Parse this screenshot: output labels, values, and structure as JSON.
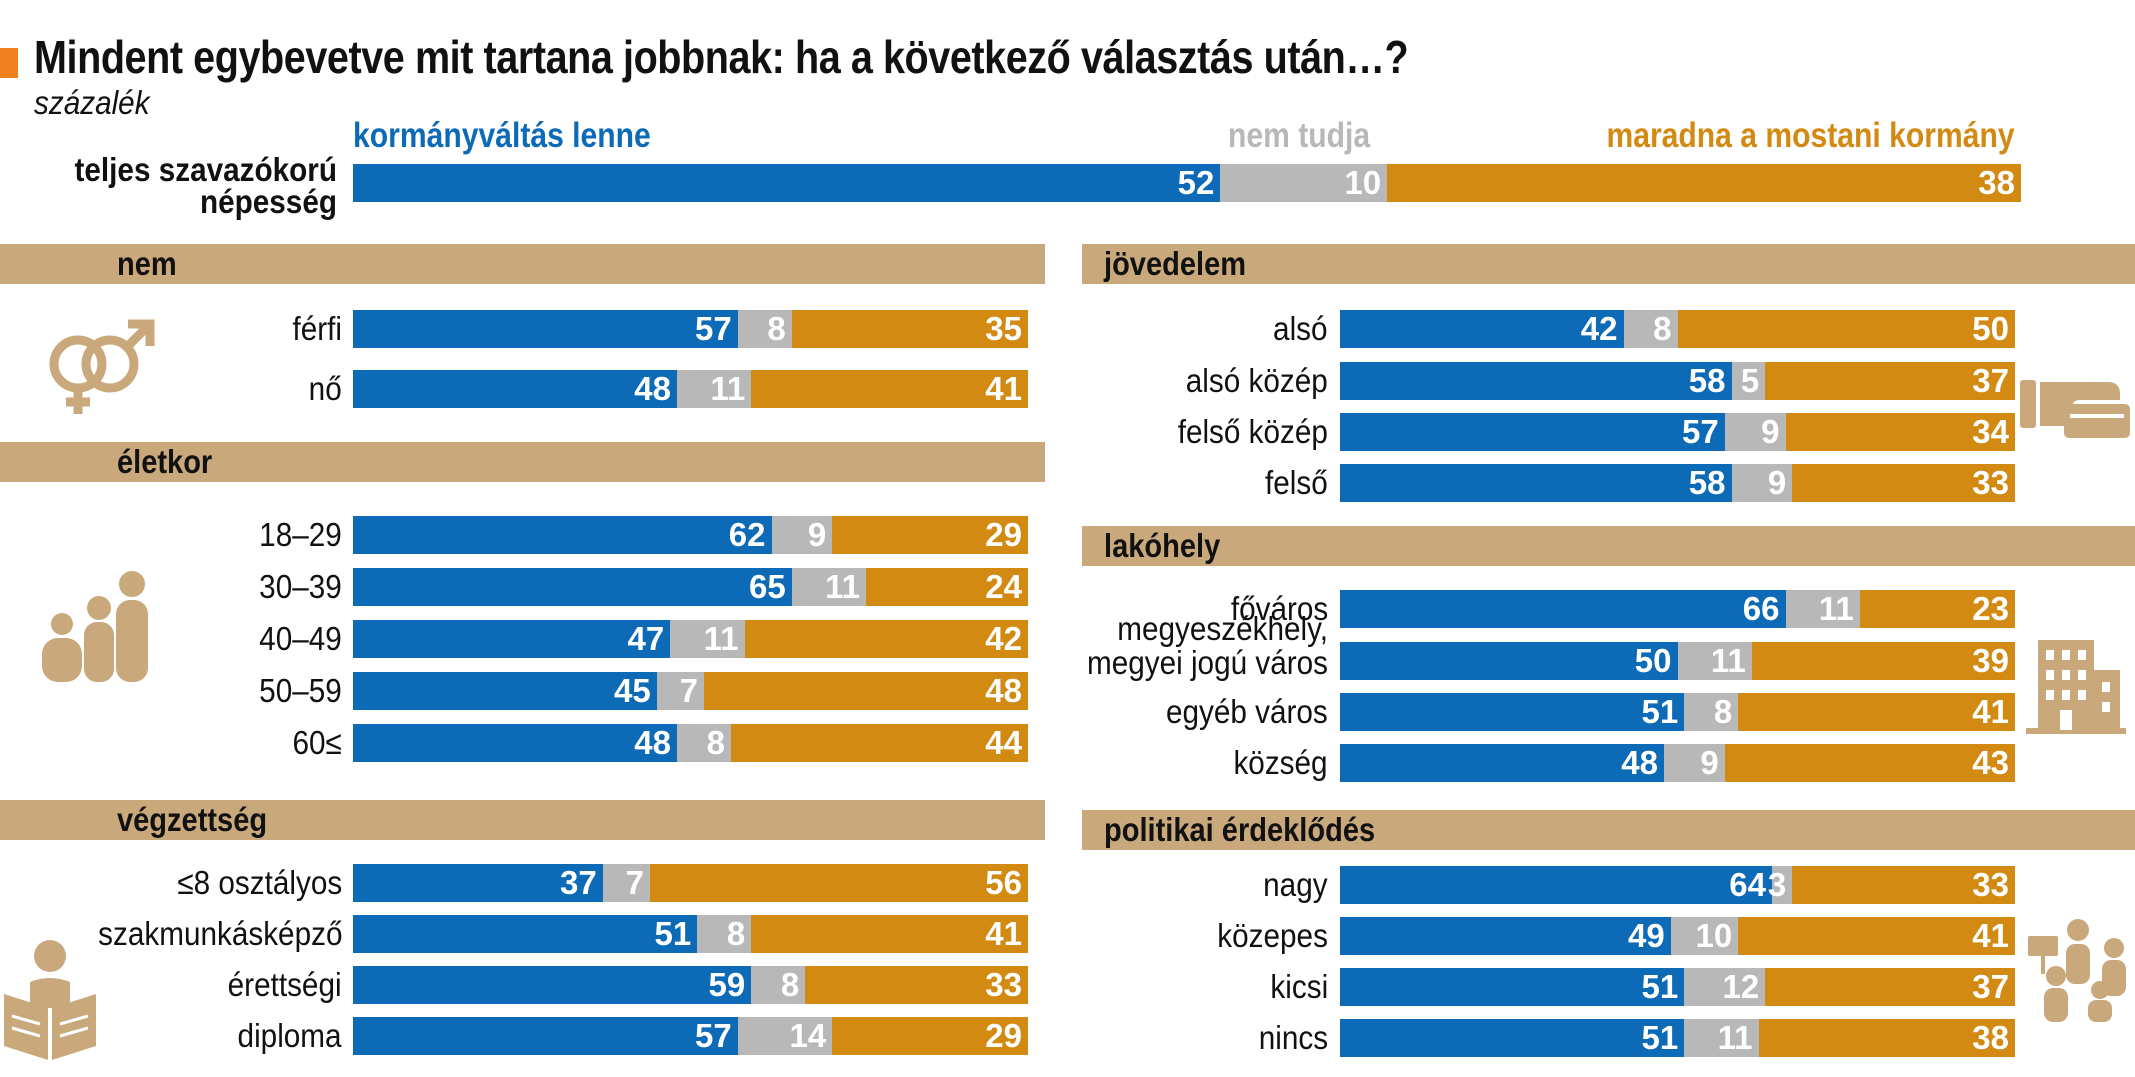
{
  "title": "Mindent egybevetve mit tartana jobbnak: ha a következő választás után…?",
  "subtitle": "százalék",
  "legend": {
    "a": "kormányváltás lenne",
    "b": "nem tudja",
    "c": "maradna a mostani kormány"
  },
  "colors": {
    "a": "#0d6ab7",
    "b": "#b8b8b8",
    "c": "#d38a13",
    "band": "#c9a87c",
    "accent": "#f07f1e"
  },
  "icons": [
    "gender-symbols-icon",
    "family-age-icon",
    "reading-person-icon",
    "card-payment-icon",
    "buildings-icon",
    "crowd-protest-icon"
  ],
  "chart_data": {
    "type": "bar",
    "stacked": true,
    "orientation": "horizontal",
    "series_names": [
      "kormányváltás lenne",
      "nem tudja",
      "maradna a mostani kormány"
    ],
    "total": {
      "label": "teljes szavazókorú népesség",
      "values": [
        52,
        10,
        38
      ]
    },
    "sections": [
      {
        "title": "nem",
        "rows": [
          {
            "label": "férfi",
            "values": [
              57,
              8,
              35
            ]
          },
          {
            "label": "nő",
            "values": [
              48,
              11,
              41
            ]
          }
        ]
      },
      {
        "title": "életkor",
        "rows": [
          {
            "label": "18–29",
            "values": [
              62,
              9,
              29
            ]
          },
          {
            "label": "30–39",
            "values": [
              65,
              11,
              24
            ]
          },
          {
            "label": "40–49",
            "values": [
              47,
              11,
              42
            ]
          },
          {
            "label": "50–59",
            "values": [
              45,
              7,
              48
            ]
          },
          {
            "label": "60≤",
            "values": [
              48,
              8,
              44
            ]
          }
        ]
      },
      {
        "title": "végzettség",
        "rows": [
          {
            "label": "≤8 osztályos",
            "values": [
              37,
              7,
              56
            ]
          },
          {
            "label": "szakmunkásképző",
            "values": [
              51,
              8,
              41
            ]
          },
          {
            "label": "érettségi",
            "values": [
              59,
              8,
              33
            ]
          },
          {
            "label": "diploma",
            "values": [
              57,
              14,
              29
            ]
          }
        ]
      },
      {
        "title": "jövedelem",
        "rows": [
          {
            "label": "alsó",
            "values": [
              42,
              8,
              50
            ]
          },
          {
            "label": "alsó közép",
            "values": [
              58,
              5,
              37
            ]
          },
          {
            "label": "felső közép",
            "values": [
              57,
              9,
              34
            ]
          },
          {
            "label": "felső",
            "values": [
              58,
              9,
              33
            ]
          }
        ]
      },
      {
        "title": "lakóhely",
        "rows": [
          {
            "label": "főváros",
            "values": [
              66,
              11,
              23
            ]
          },
          {
            "label": "megyeszékhely, megyei jogú város",
            "values": [
              50,
              11,
              39
            ]
          },
          {
            "label": "egyéb város",
            "values": [
              51,
              8,
              41
            ]
          },
          {
            "label": "község",
            "values": [
              48,
              9,
              43
            ]
          }
        ]
      },
      {
        "title": "politikai érdeklődés",
        "rows": [
          {
            "label": "nagy",
            "values": [
              64,
              3,
              33
            ]
          },
          {
            "label": "közepes",
            "values": [
              49,
              10,
              41
            ]
          },
          {
            "label": "kicsi",
            "values": [
              51,
              12,
              37
            ]
          },
          {
            "label": "nincs",
            "values": [
              51,
              11,
              38
            ]
          }
        ]
      }
    ]
  }
}
